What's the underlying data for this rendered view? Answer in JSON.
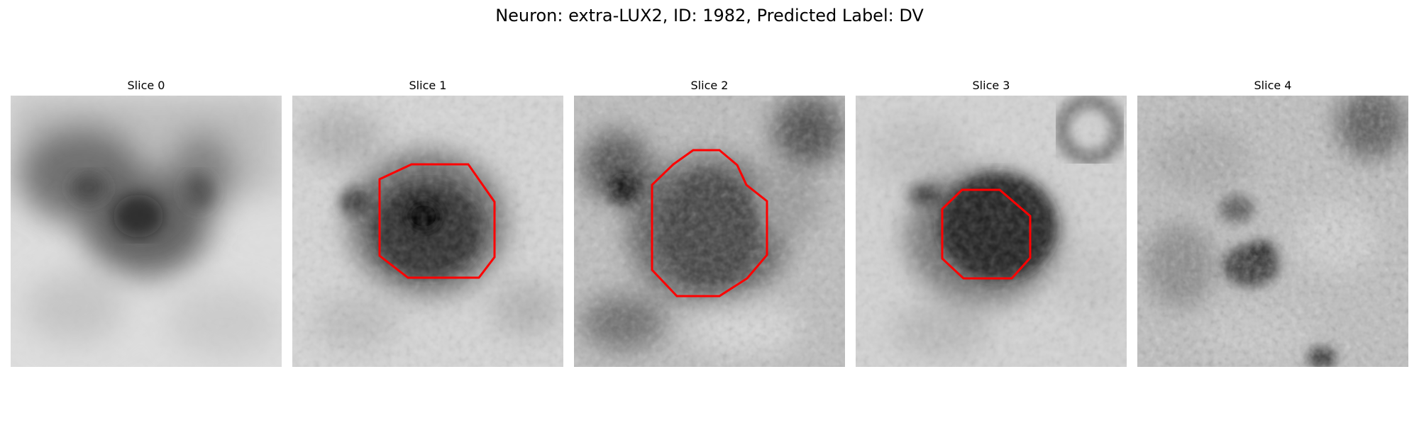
{
  "figure": {
    "title": "Neuron: extra-LUX2, ID: 1982, Predicted Label: DV"
  },
  "slices": [
    {
      "label": "Slice 0",
      "has_contour": false
    },
    {
      "label": "Slice 1",
      "has_contour": true
    },
    {
      "label": "Slice 2",
      "has_contour": true
    },
    {
      "label": "Slice 3",
      "has_contour": true
    },
    {
      "label": "Slice 4",
      "has_contour": false
    }
  ],
  "colors": {
    "background": "#ffffff",
    "contour": "#ff0000",
    "image_colormap": "grayscale"
  }
}
